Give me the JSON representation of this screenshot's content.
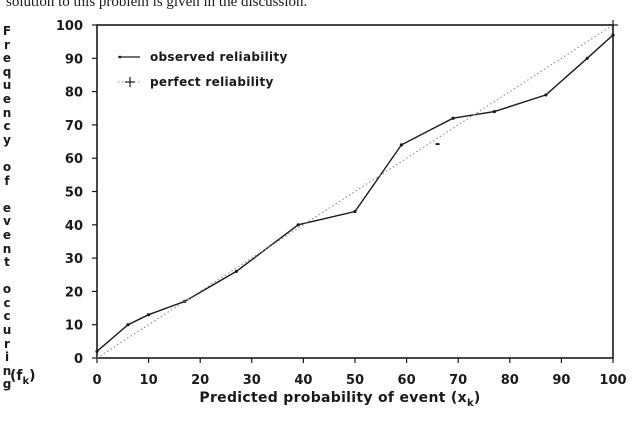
{
  "page": {
    "top_text": "solution to this problem is given in the discussion.",
    "ylabel_lines": [
      "F",
      "r",
      "e",
      "q",
      "u",
      "e",
      "n",
      "c",
      "y",
      "",
      "o",
      "f",
      "",
      "e",
      "v",
      "e",
      "n",
      "t",
      "",
      "o",
      "c",
      "c",
      "u",
      "r",
      "i",
      "n",
      "g"
    ],
    "fk_label": "(f",
    "fk_sub": "k",
    "fk_close": ")"
  },
  "chart_data": {
    "type": "line",
    "xlabel": "Predicted probability of event",
    "xlabel_symbol": "(x",
    "xlabel_sub": "k",
    "xlabel_close": ")",
    "xlim": [
      0,
      100
    ],
    "ylim": [
      0,
      100
    ],
    "xticks": [
      "0",
      "10",
      "20",
      "30",
      "40",
      "50",
      "60",
      "70",
      "80",
      "90",
      "100"
    ],
    "yticks": [
      "0",
      "10",
      "20",
      "30",
      "40",
      "50",
      "60",
      "70",
      "80",
      "90",
      "100"
    ],
    "legend_position": "top-left",
    "series": [
      {
        "name": "observed reliability",
        "style": "solid",
        "color": "#1a1a1a",
        "x": [
          0,
          6,
          10,
          17,
          27,
          39,
          50,
          59,
          69,
          77,
          87,
          95,
          100
        ],
        "y": [
          2,
          10,
          13,
          17,
          26,
          40,
          44,
          64,
          72,
          74,
          79,
          90,
          97
        ]
      },
      {
        "name": "perfect reliability",
        "style": "dotted",
        "color": "#8a8a8a",
        "x": [
          0,
          100
        ],
        "y": [
          0,
          100
        ]
      }
    ],
    "annotations": [
      {
        "text": "-",
        "x": 66,
        "y": 63
      }
    ]
  }
}
